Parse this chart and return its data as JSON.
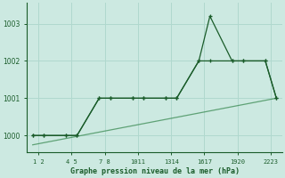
{
  "title": "Graphe pression niveau de la mer (hPa)",
  "background_color": "#cce9e1",
  "grid_color": "#b0d8ce",
  "line_color_main": "#1a5c2a",
  "line_color_trend": "#3a8a52",
  "ylim": [
    999.55,
    1003.55
  ],
  "yticks": [
    1000,
    1001,
    1002,
    1003
  ],
  "xlim": [
    0.5,
    23.5
  ],
  "xtick_labels": [
    "1 2",
    "4 5",
    "7 8",
    "1011",
    "1314",
    "1617",
    "1920",
    "2223"
  ],
  "xtick_positions": [
    1.5,
    4.5,
    7.5,
    10.5,
    13.5,
    16.5,
    19.5,
    22.5
  ],
  "line1_x": [
    1,
    2,
    4,
    5,
    7,
    8,
    10,
    11,
    13,
    14,
    16,
    17,
    19,
    20,
    22,
    23
  ],
  "line1_y": [
    1000.0,
    1000.0,
    1000.0,
    1000.0,
    1001.0,
    1001.0,
    1001.0,
    1001.0,
    1001.0,
    1001.0,
    1002.0,
    1003.2,
    1002.0,
    1002.0,
    1002.0,
    1001.0
  ],
  "line2_x": [
    1,
    2,
    4,
    5,
    7,
    8,
    10,
    11,
    13,
    14,
    16,
    17,
    19,
    20,
    22,
    23
  ],
  "line2_y": [
    1000.0,
    1000.0,
    1000.0,
    1000.0,
    1001.0,
    1001.0,
    1001.0,
    1001.0,
    1001.0,
    1001.0,
    1002.0,
    1002.0,
    1002.0,
    1002.0,
    1002.0,
    1001.0
  ],
  "trend_x": [
    1,
    23
  ],
  "trend_y": [
    999.75,
    1001.0
  ]
}
